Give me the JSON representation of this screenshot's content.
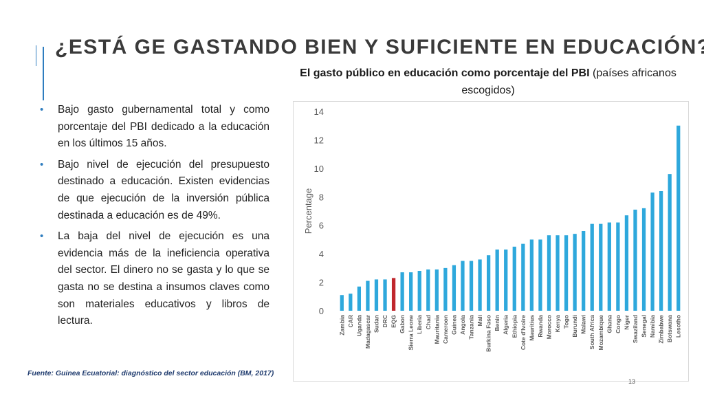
{
  "slide": {
    "title": "¿ESTÁ GE GASTANDO BIEN Y SUFICIENTE EN EDUCACIÓN?",
    "bullets": [
      "Bajo gasto gubernamental total y como porcentaje del PBI dedicado a la educación en los últimos 15 años.",
      "Bajo nivel de ejecución del presupuesto destinado a educación. Existen evidencias de que ejecución de la inversión pública destinada a educación es de 49%.",
      "La baja del nivel de ejecución es una evidencia más de la ineficiencia operativa del sector. El dinero no se gasta y lo que se gasta no se destina a insumos claves como son materiales educativos y libros de lectura."
    ],
    "bullet_symbol": "•",
    "source": "Fuente: Guinea Ecuatorial: diagnóstico del sector educación (BM, 2017)",
    "page_number": "13",
    "accent_color": "#2e7dbf"
  },
  "chart_data": {
    "type": "bar",
    "title_bold": "El gasto público en educación como porcentaje del PBI",
    "title_rest": " (países africanos escogidos)",
    "xlabel": "",
    "ylabel": "Percentage",
    "ylim": [
      0,
      14
    ],
    "yticks": [
      "0",
      "2",
      "4",
      "6",
      "8",
      "10",
      "12",
      "14"
    ],
    "grid": false,
    "bar_color": "#2ea8dc",
    "highlight_color": "#c0272d",
    "highlight_category": "EQG",
    "categories": [
      "Zambia",
      "CAR",
      "Uganda",
      "Madagascar",
      "Sudan",
      "DRC",
      "EQG",
      "Gabon",
      "Sierra Leone",
      "Liberia",
      "Chad",
      "Mauritania",
      "Cameroon",
      "Guinea",
      "Angola",
      "Tanzania",
      "Mali",
      "Burkina Faso",
      "Benin",
      "Algeria",
      "Ethiopia",
      "Cote d'Ivoire",
      "Mauritius",
      "Rwanda",
      "Morocco",
      "Kenya",
      "Togo",
      "Burundi",
      "Malawi",
      "South Africa",
      "Mozambique",
      "Ghana",
      "Congo",
      "Niger",
      "Swaziland",
      "Senegal",
      "Namibia",
      "Zimbabwe",
      "Botswana",
      "Lesotho"
    ],
    "values": [
      1.1,
      1.2,
      1.7,
      2.1,
      2.2,
      2.2,
      2.3,
      2.7,
      2.7,
      2.8,
      2.9,
      2.9,
      3.0,
      3.2,
      3.5,
      3.5,
      3.6,
      3.9,
      4.3,
      4.3,
      4.5,
      4.7,
      5.0,
      5.0,
      5.3,
      5.3,
      5.3,
      5.4,
      5.6,
      6.1,
      6.1,
      6.2,
      6.2,
      6.7,
      7.1,
      7.2,
      8.3,
      8.4,
      9.6,
      13.0
    ]
  }
}
